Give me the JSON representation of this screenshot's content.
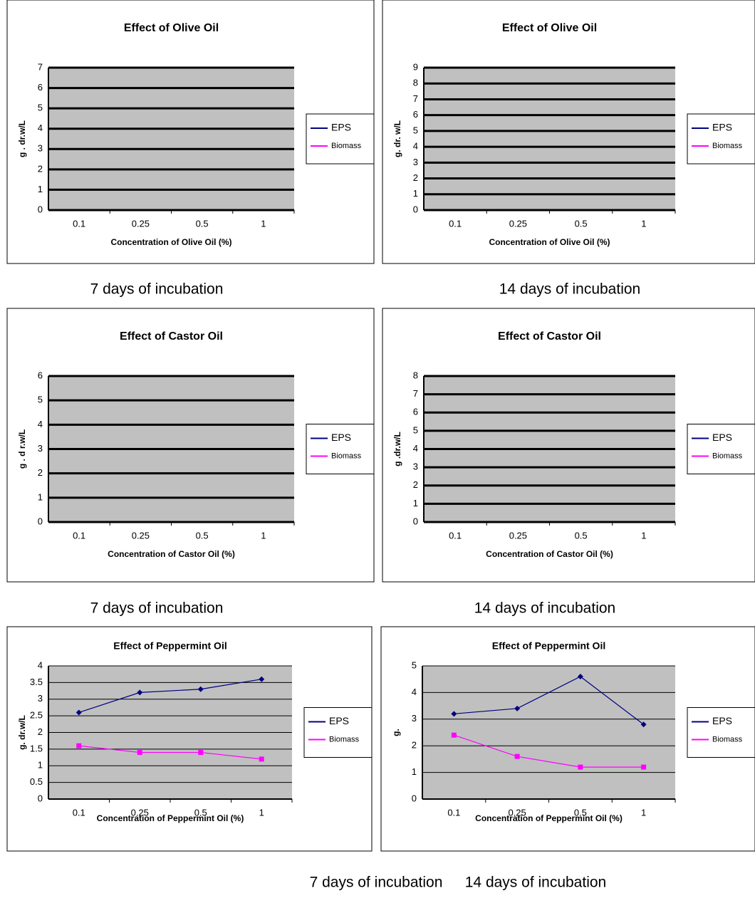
{
  "chart_data": [
    {
      "type": "line",
      "title": "Effect of Olive Oil",
      "x_label": "Concentration of Olive Oil (%)",
      "y_label": "g . dr.w/L",
      "categories": [
        "0.1",
        "0.25",
        "0.5",
        "1"
      ],
      "series": [
        {
          "name": "EPS",
          "color": "#000080",
          "values": [
            null,
            null,
            null,
            null
          ]
        },
        {
          "name": "Biomass",
          "color": "#ff00ff",
          "values": [
            null,
            null,
            null,
            null
          ]
        }
      ],
      "ylim": [
        0,
        7
      ],
      "yticks": [
        0,
        1,
        2,
        3,
        4,
        5,
        6,
        7
      ],
      "grid": true
    },
    {
      "type": "line",
      "title": "Effect of Olive Oil",
      "x_label": "Concentration of Olive Oil (%)",
      "y_label": "g. dr. w/L",
      "categories": [
        "0.1",
        "0.25",
        "0.5",
        "1"
      ],
      "series": [
        {
          "name": "EPS",
          "color": "#000080",
          "values": [
            null,
            null,
            null,
            null
          ]
        },
        {
          "name": "Biomass",
          "color": "#ff00ff",
          "values": [
            null,
            null,
            null,
            null
          ]
        }
      ],
      "ylim": [
        0,
        9
      ],
      "yticks": [
        0,
        1,
        2,
        3,
        4,
        5,
        6,
        7,
        8,
        9
      ],
      "grid": true
    },
    {
      "type": "line",
      "title": "Effect of Castor Oil",
      "x_label": "Concentration of Castor Oil (%)",
      "y_label": "g . d r.w/L",
      "categories": [
        "0.1",
        "0.25",
        "0.5",
        "1"
      ],
      "series": [
        {
          "name": "EPS",
          "color": "#000080",
          "values": [
            null,
            null,
            null,
            null
          ]
        },
        {
          "name": "Biomass",
          "color": "#ff00ff",
          "values": [
            null,
            null,
            null,
            null
          ]
        }
      ],
      "ylim": [
        0,
        6
      ],
      "yticks": [
        0,
        1,
        2,
        3,
        4,
        5,
        6
      ],
      "grid": true
    },
    {
      "type": "line",
      "title": "Effect of Castor Oil",
      "x_label": "Concentration of Castor Oil (%)",
      "y_label": "g .dr.w/L",
      "categories": [
        "0.1",
        "0.25",
        "0.5",
        "1"
      ],
      "series": [
        {
          "name": "EPS",
          "color": "#000080",
          "values": [
            null,
            null,
            null,
            null
          ]
        },
        {
          "name": "Biomass",
          "color": "#ff00ff",
          "values": [
            null,
            null,
            null,
            null
          ]
        }
      ],
      "ylim": [
        0,
        8
      ],
      "yticks": [
        0,
        1,
        2,
        3,
        4,
        5,
        6,
        7,
        8
      ],
      "grid": true
    },
    {
      "type": "line",
      "title": "Effect of Peppermint Oil",
      "x_label": "Concentration of Peppermint Oil (%)",
      "y_label": "g. dr.w/L",
      "categories": [
        "0.1",
        "0.25",
        "0.5",
        "1"
      ],
      "series": [
        {
          "name": "EPS",
          "color": "#000080",
          "values": [
            2.6,
            3.2,
            3.3,
            3.6
          ]
        },
        {
          "name": "Biomass",
          "color": "#ff00ff",
          "values": [
            1.6,
            1.4,
            1.4,
            1.2
          ]
        }
      ],
      "ylim": [
        0,
        4
      ],
      "yticks": [
        0,
        0.5,
        1,
        1.5,
        2,
        2.5,
        3,
        3.5,
        4
      ],
      "grid": true
    },
    {
      "type": "line",
      "title": "Effect of Peppermint Oil",
      "x_label": "Concentration of Peppermint Oil (%)",
      "y_label": "g.",
      "categories": [
        "0.1",
        "0.25",
        "0.5",
        "1"
      ],
      "series": [
        {
          "name": "EPS",
          "color": "#000080",
          "values": [
            3.2,
            3.4,
            4.6,
            2.8
          ]
        },
        {
          "name": "Biomass",
          "color": "#ff00ff",
          "values": [
            2.4,
            1.6,
            1.2,
            1.2
          ]
        }
      ],
      "ylim": [
        0,
        5
      ],
      "yticks": [
        0,
        1,
        2,
        3,
        4,
        5
      ],
      "grid": true
    }
  ],
  "captions": [
    "7 days of incubation",
    "14 days of incubation",
    "7 days of incubation",
    "14 days of incubation",
    "7 days of incubation",
    "14 days of incubation"
  ]
}
